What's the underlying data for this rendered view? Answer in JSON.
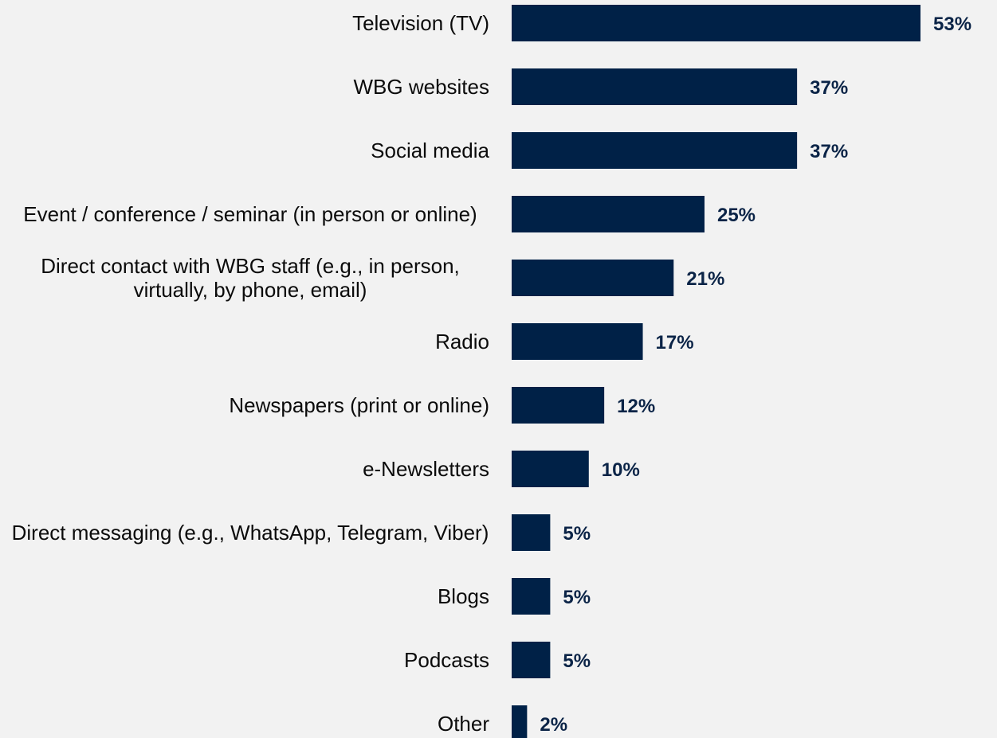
{
  "chart_data": {
    "type": "bar",
    "orientation": "horizontal",
    "categories": [
      "Television (TV)",
      "WBG websites",
      "Social media",
      "Event / conference / seminar (in person or online)",
      "Direct contact with WBG staff (e.g., in person, virtually, by phone, email)",
      "Radio",
      "Newspapers (print or online)",
      "e-Newsletters",
      "Direct messaging (e.g., WhatsApp, Telegram, Viber)",
      "Blogs",
      "Podcasts",
      "Other"
    ],
    "values": [
      53,
      37,
      37,
      25,
      21,
      17,
      12,
      10,
      5,
      5,
      5,
      2
    ],
    "value_labels": [
      "53%",
      "37%",
      "37%",
      "25%",
      "21%",
      "17%",
      "12%",
      "10%",
      "5%",
      "5%",
      "5%",
      "2%"
    ],
    "xlim": [
      0,
      53
    ],
    "grid": false,
    "legend": "none",
    "bar_color": "#002147"
  }
}
